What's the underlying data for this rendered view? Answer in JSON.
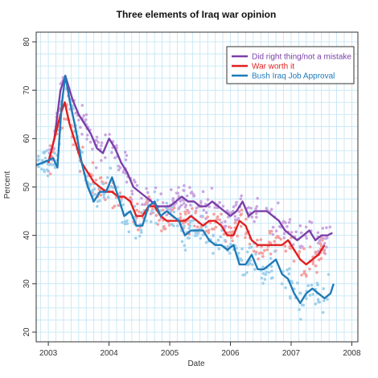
{
  "chart_data": {
    "type": "line",
    "title": "Three elements of Iraq war opinion",
    "xlabel": "Date",
    "ylabel": "Percent",
    "xlim": [
      2002.8,
      2008.1
    ],
    "ylim": [
      18,
      82
    ],
    "x_ticks": [
      2003,
      2004,
      2005,
      2006,
      2007,
      2008
    ],
    "x_tick_labels": [
      "2003",
      "2004",
      "2005",
      "2006",
      "2007",
      "2008"
    ],
    "y_ticks": [
      20,
      30,
      40,
      50,
      60,
      70,
      80
    ],
    "y_tick_labels": [
      "20",
      "30",
      "40",
      "50",
      "60",
      "70",
      "80"
    ],
    "grid": true,
    "legend_position": "top-right",
    "series": [
      {
        "name": "Did right thing/not a mistake",
        "color": "#7b3fa9",
        "point_color": "#c9a6e0",
        "x": [
          2003.0,
          2003.1,
          2003.2,
          2003.28,
          2003.4,
          2003.5,
          2003.6,
          2003.7,
          2003.8,
          2003.9,
          2004.0,
          2004.1,
          2004.2,
          2004.3,
          2004.4,
          2004.5,
          2004.6,
          2004.7,
          2004.8,
          2004.9,
          2005.0,
          2005.1,
          2005.2,
          2005.3,
          2005.4,
          2005.5,
          2005.6,
          2005.7,
          2005.8,
          2005.9,
          2006.0,
          2006.1,
          2006.2,
          2006.3,
          2006.4,
          2006.5,
          2006.6,
          2006.7,
          2006.8,
          2006.9,
          2007.0,
          2007.1,
          2007.2,
          2007.3,
          2007.4,
          2007.5,
          2007.6,
          2007.68
        ],
        "y": [
          55,
          60,
          70,
          73,
          68,
          65,
          63,
          61,
          58,
          57,
          60,
          58,
          55,
          53,
          50,
          49,
          48,
          47,
          46,
          46,
          46,
          47,
          48,
          47,
          47,
          46,
          46,
          47,
          46,
          45,
          44,
          45,
          47,
          44,
          45,
          45,
          45,
          44,
          43,
          41,
          40,
          39,
          40,
          41,
          39,
          40,
          40,
          40.5
        ]
      },
      {
        "name": "War worth it",
        "color": "#e02020",
        "point_color": "#f5a0a0",
        "x": [
          2003.0,
          2003.1,
          2003.2,
          2003.27,
          2003.35,
          2003.45,
          2003.55,
          2003.65,
          2003.75,
          2003.85,
          2003.95,
          2004.05,
          2004.15,
          2004.25,
          2004.35,
          2004.45,
          2004.55,
          2004.65,
          2004.75,
          2004.85,
          2004.95,
          2005.05,
          2005.15,
          2005.25,
          2005.35,
          2005.45,
          2005.55,
          2005.65,
          2005.75,
          2005.85,
          2005.95,
          2006.05,
          2006.15,
          2006.25,
          2006.35,
          2006.45,
          2006.55,
          2006.65,
          2006.75,
          2006.85,
          2006.95,
          2007.05,
          2007.15,
          2007.25,
          2007.35,
          2007.45,
          2007.55
        ],
        "y": [
          55,
          60,
          65,
          67.5,
          63,
          59,
          55,
          53,
          51,
          50,
          49,
          49,
          48,
          48,
          47,
          44,
          44,
          46,
          46,
          44,
          43,
          43,
          43,
          43,
          44,
          43,
          42,
          43,
          43,
          42,
          40,
          40,
          43,
          42,
          39,
          38,
          38,
          38,
          38,
          38,
          39,
          37,
          35,
          34,
          35,
          36,
          38
        ]
      },
      {
        "name": "Bush Iraq Job Approval",
        "color": "#1f7ab8",
        "point_color": "#9fd0ec",
        "x": [
          2002.8,
          2002.9,
          2003.0,
          2003.08,
          2003.15,
          2003.22,
          2003.28,
          2003.35,
          2003.45,
          2003.55,
          2003.65,
          2003.75,
          2003.85,
          2003.95,
          2004.05,
          2004.15,
          2004.25,
          2004.35,
          2004.45,
          2004.55,
          2004.65,
          2004.75,
          2004.85,
          2004.95,
          2005.05,
          2005.15,
          2005.25,
          2005.35,
          2005.45,
          2005.55,
          2005.65,
          2005.75,
          2005.85,
          2005.95,
          2006.05,
          2006.15,
          2006.25,
          2006.35,
          2006.45,
          2006.55,
          2006.65,
          2006.75,
          2006.85,
          2006.95,
          2007.05,
          2007.15,
          2007.25,
          2007.35,
          2007.45,
          2007.55,
          2007.65,
          2007.7
        ],
        "y": [
          54.5,
          55,
          55.5,
          56,
          54,
          67,
          73,
          68,
          62,
          55,
          50,
          47,
          49,
          49,
          52,
          48,
          44,
          45,
          42,
          42,
          46,
          47,
          44,
          45,
          44,
          43,
          40,
          41,
          41,
          41,
          39,
          38,
          38,
          37,
          38,
          34,
          34,
          36,
          33,
          33,
          34,
          35,
          32,
          31,
          28,
          26,
          28,
          29,
          28,
          27,
          28,
          30
        ]
      }
    ]
  }
}
